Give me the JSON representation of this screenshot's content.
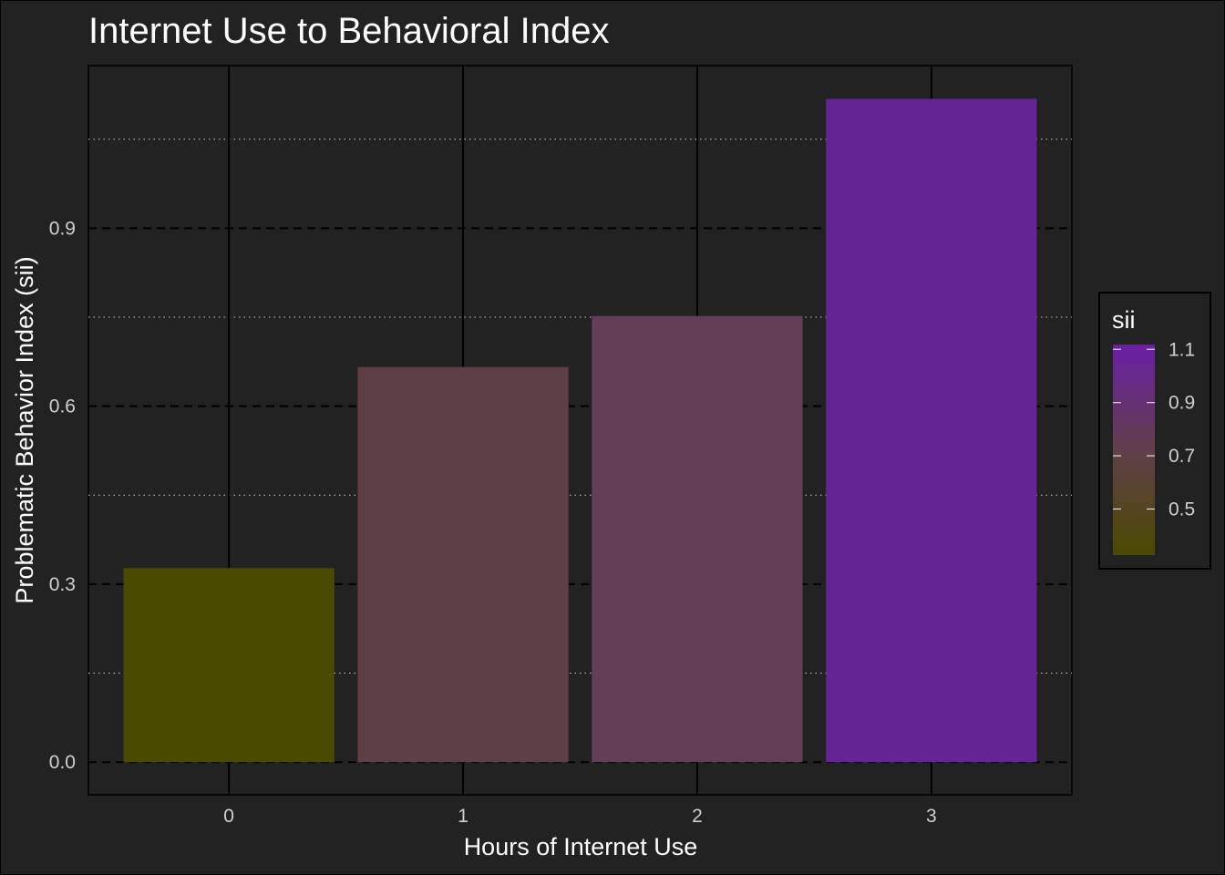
{
  "chart_data": {
    "type": "bar",
    "title": "Internet Use to Behavioral Index",
    "xlabel": "Hours of Internet Use",
    "ylabel": "Problematic Behavior Index (sii)",
    "categories": [
      "0",
      "1",
      "2",
      "3"
    ],
    "values": [
      0.327,
      0.666,
      0.752,
      1.118
    ],
    "ylim": [
      -0.055,
      1.174
    ],
    "yticks": [
      0.0,
      0.3,
      0.6,
      0.9
    ],
    "ytick_labels": [
      "0.0",
      "0.3",
      "0.6",
      "0.9"
    ],
    "grid": true,
    "legend": {
      "title": "sii",
      "position": "right",
      "type": "colorbar",
      "range": [
        0.327,
        1.118
      ],
      "ticks": [
        0.5,
        0.7,
        0.9,
        1.1
      ],
      "tick_labels": [
        "0.5",
        "0.7",
        "0.9",
        "1.1"
      ],
      "low_color": "#4a4a00",
      "mid_color": "#603f4b",
      "high_color": "#6a1fa4"
    },
    "colors": [
      "#4a4a00",
      "#5e3f46",
      "#633e57",
      "#642495"
    ]
  }
}
